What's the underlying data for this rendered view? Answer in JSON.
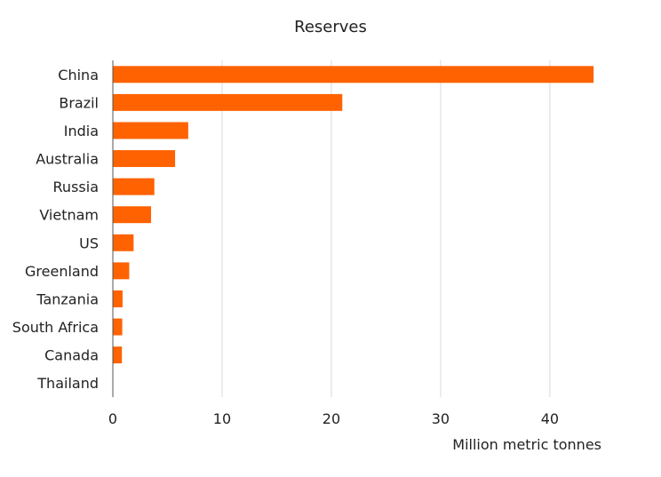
{
  "chart_data": {
    "type": "bar",
    "orientation": "horizontal",
    "title": "Reserves",
    "xlabel": "Million metric tonnes",
    "ylabel": "",
    "categories": [
      "China",
      "Brazil",
      "India",
      "Australia",
      "Russia",
      "Vietnam",
      "US",
      "Greenland",
      "Tanzania",
      "South Africa",
      "Canada",
      "Thailand"
    ],
    "values": [
      44,
      21,
      6.9,
      5.7,
      3.8,
      3.5,
      1.9,
      1.5,
      0.89,
      0.86,
      0.83,
      0.0045
    ],
    "xlim": [
      0,
      47
    ],
    "xticks": [
      0,
      10,
      20,
      30,
      40
    ],
    "grid": true,
    "bar_color": "#FF6200"
  }
}
